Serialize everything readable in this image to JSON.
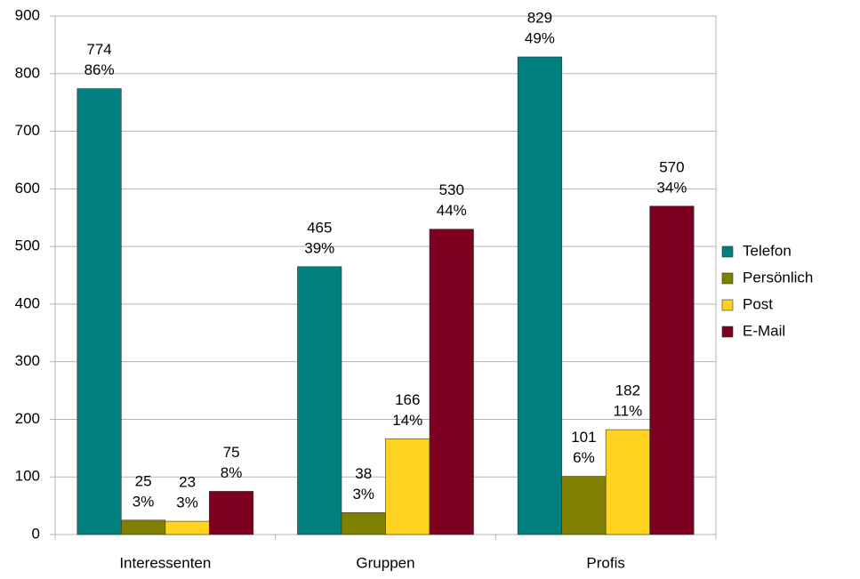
{
  "chart_data": {
    "type": "bar",
    "categories": [
      "Interessenten",
      "Gruppen",
      "Profis"
    ],
    "series": [
      {
        "name": "Telefon",
        "color": "#008080",
        "values": [
          774,
          465,
          829
        ],
        "share_labels": [
          "86%",
          "39%",
          "49%"
        ]
      },
      {
        "name": "Persönlich",
        "color": "#808000",
        "values": [
          25,
          38,
          101
        ],
        "share_labels": [
          "3%",
          "3%",
          "6%"
        ]
      },
      {
        "name": "Post",
        "color": "#ffd320",
        "values": [
          23,
          166,
          182
        ],
        "share_labels": [
          "3%",
          "14%",
          "11%"
        ]
      },
      {
        "name": "E-Mail",
        "color": "#7e0021",
        "values": [
          75,
          530,
          570
        ],
        "share_labels": [
          "8%",
          "44%",
          "34%"
        ]
      }
    ],
    "ylim": [
      0,
      900
    ],
    "yticks": [
      0,
      100,
      200,
      300,
      400,
      500,
      600,
      700,
      800,
      900
    ],
    "grid": true,
    "legend": "right"
  }
}
